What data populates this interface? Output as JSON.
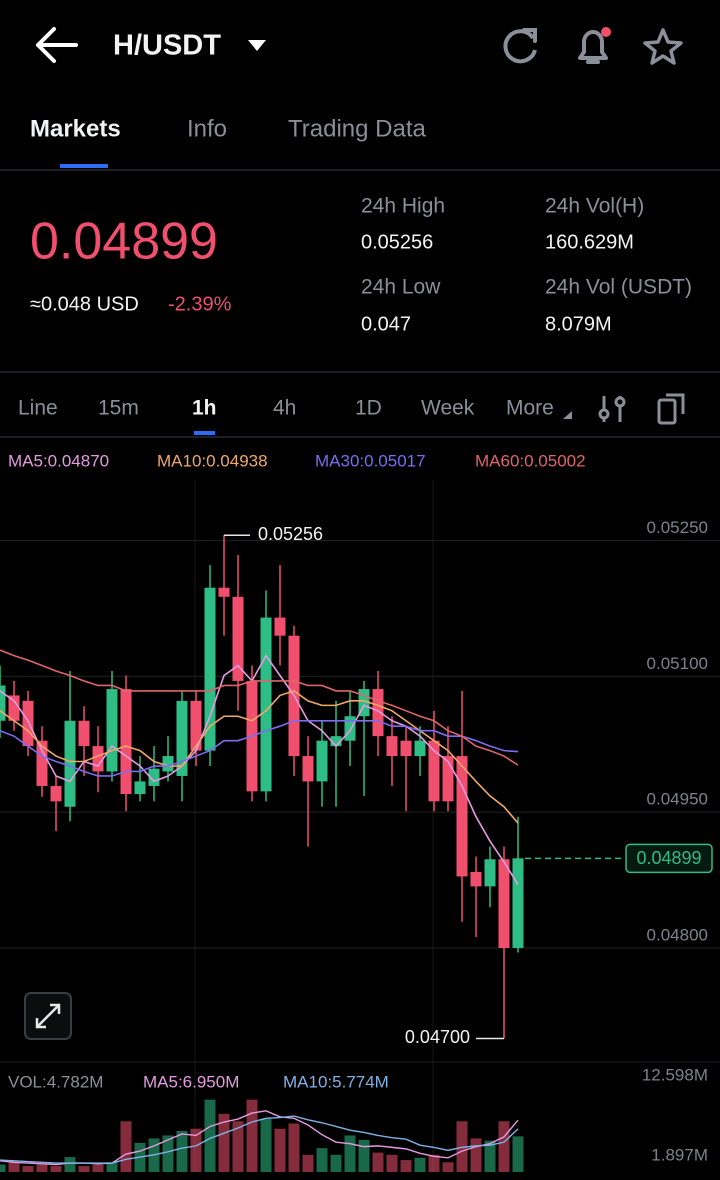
{
  "header": {
    "title": "H/USDT"
  },
  "tabs": [
    "Markets",
    "Info",
    "Trading Data"
  ],
  "ticker": {
    "price": "0.04899",
    "usd": "≈0.048 USD",
    "change": "-2.39%",
    "stats": [
      {
        "label": "24h High",
        "value": "0.05256"
      },
      {
        "label": "24h Vol(H)",
        "value": "160.629M"
      },
      {
        "label": "24h Low",
        "value": "0.047"
      },
      {
        "label": "24h Vol (USDT)",
        "value": "8.079M"
      }
    ]
  },
  "intervals": [
    "Line",
    "15m",
    "1h",
    "4h",
    "1D",
    "Week",
    "More"
  ],
  "chart_data": [
    {
      "type": "candlestick",
      "up_color": "#2ebd85",
      "down_color": "#f0506e",
      "open": [
        0.05051,
        0.05079,
        0.05073,
        0.05029,
        0.04979,
        0.04956,
        0.05051,
        0.05023,
        0.04995,
        0.05086,
        0.0497,
        0.04979,
        0.04995,
        0.0499,
        0.05073,
        0.05018,
        0.05198,
        0.05188,
        0.05095,
        0.04973,
        0.05165,
        0.05145,
        0.05012,
        0.04984,
        0.05023,
        0.05029,
        0.05056,
        0.05086,
        0.05034,
        0.05029,
        0.05012,
        0.05029,
        0.05012,
        0.05012,
        0.04884,
        0.04868,
        0.04898,
        0.048
      ],
      "high": [
        0.05112,
        0.05095,
        0.05084,
        0.05045,
        0.0499,
        0.05106,
        0.05067,
        0.05045,
        0.05106,
        0.05101,
        0.05012,
        0.05023,
        0.05034,
        0.05084,
        0.05084,
        0.05223,
        0.05256,
        0.05234,
        0.05112,
        0.05195,
        0.05223,
        0.05156,
        0.05034,
        0.05051,
        0.05073,
        0.05084,
        0.05095,
        0.05106,
        0.05056,
        0.05045,
        0.05045,
        0.05062,
        0.05045,
        0.05084,
        0.04901,
        0.04912,
        0.04912,
        0.04945
      ],
      "low": [
        0.05032,
        0.0504,
        0.05012,
        0.04967,
        0.04929,
        0.0494,
        0.0499,
        0.04972,
        0.04984,
        0.04951,
        0.04962,
        0.04962,
        0.04984,
        0.04962,
        0.05001,
        0.05001,
        0.05145,
        0.05062,
        0.04962,
        0.04962,
        0.05112,
        0.0499,
        0.04912,
        0.04956,
        0.04956,
        0.05001,
        0.04968,
        0.05012,
        0.04979,
        0.04951,
        0.0499,
        0.04951,
        0.04951,
        0.04829,
        0.04812,
        0.04845,
        0.047,
        0.04795
      ],
      "close": [
        0.0509,
        0.05051,
        0.05023,
        0.04979,
        0.04962,
        0.05051,
        0.05023,
        0.04995,
        0.05086,
        0.0497,
        0.04984,
        0.04998,
        0.05012,
        0.05073,
        0.05018,
        0.05198,
        0.05188,
        0.05095,
        0.04973,
        0.05165,
        0.05145,
        0.05012,
        0.04984,
        0.05029,
        0.05034,
        0.05056,
        0.05086,
        0.05034,
        0.05012,
        0.05012,
        0.05029,
        0.04962,
        0.04962,
        0.04879,
        0.04868,
        0.04898,
        0.048,
        0.04899
      ],
      "series": [
        {
          "name": "MA5:0.04870",
          "color": "#e59be0",
          "values": [
            0.05084,
            0.05073,
            0.05051,
            0.05018,
            0.0499,
            0.04984,
            0.05006,
            0.05001,
            0.05023,
            0.05012,
            0.05001,
            0.04984,
            0.0499,
            0.05001,
            0.05018,
            0.05056,
            0.05101,
            0.05112,
            0.05095,
            0.05123,
            0.05101,
            0.05079,
            0.05051,
            0.0504,
            0.05023,
            0.0504,
            0.05068,
            0.05062,
            0.05051,
            0.05045,
            0.05034,
            0.05018,
            0.05006,
            0.04979,
            0.04945,
            0.04918,
            0.04895,
            0.0487
          ]
        },
        {
          "name": "MA10:0.04938",
          "color": "#f0a868",
          "values": [
            0.05062,
            0.05051,
            0.0504,
            0.05023,
            0.05012,
            0.05006,
            0.05006,
            0.05012,
            0.05018,
            0.05023,
            0.05018,
            0.05006,
            0.05001,
            0.05001,
            0.05023,
            0.05045,
            0.05056,
            0.05056,
            0.05051,
            0.05062,
            0.05079,
            0.05084,
            0.05073,
            0.05068,
            0.05068,
            0.05073,
            0.05073,
            0.05068,
            0.05062,
            0.05051,
            0.0504,
            0.05029,
            0.05018,
            0.05001,
            0.04984,
            0.04968,
            0.04956,
            0.04938
          ]
        },
        {
          "name": "MA30:0.05017",
          "color": "#7b6cf0",
          "values": [
            0.0504,
            0.05034,
            0.05023,
            0.05012,
            0.05006,
            0.05001,
            0.04995,
            0.0499,
            0.0499,
            0.04995,
            0.04995,
            0.05001,
            0.05001,
            0.05006,
            0.05012,
            0.05018,
            0.05029,
            0.05029,
            0.05034,
            0.0504,
            0.05045,
            0.05051,
            0.05051,
            0.05051,
            0.05051,
            0.05051,
            0.05051,
            0.05051,
            0.05045,
            0.05045,
            0.0504,
            0.0504,
            0.05034,
            0.05034,
            0.05029,
            0.05023,
            0.05018,
            0.05017
          ]
        },
        {
          "name": "MA60:0.05002",
          "color": "#e0656a",
          "values": [
            0.05129,
            0.05123,
            0.05118,
            0.05112,
            0.05106,
            0.05101,
            0.05095,
            0.0509,
            0.0509,
            0.05084,
            0.05084,
            0.05084,
            0.05084,
            0.05084,
            0.05084,
            0.05084,
            0.0509,
            0.0509,
            0.05095,
            0.05095,
            0.05095,
            0.05095,
            0.0509,
            0.0509,
            0.05084,
            0.05084,
            0.05079,
            0.05073,
            0.05068,
            0.05062,
            0.05056,
            0.05051,
            0.0504,
            0.05034,
            0.05023,
            0.05018,
            0.05012,
            0.05002
          ]
        }
      ],
      "ylim": [
        0.04674,
        0.05317
      ],
      "yticks": [
        {
          "value": 0.0525,
          "label": "0.05250"
        },
        {
          "value": 0.051,
          "label": "0.05100"
        },
        {
          "value": 0.0495,
          "label": "0.04950"
        },
        {
          "value": 0.048,
          "label": "0.04800"
        }
      ],
      "last_price": 0.04899,
      "high_label": 0.05256,
      "low_label": {
        "value": 0.047,
        "label": "0.04700"
      },
      "grid": true
    },
    {
      "type": "bar",
      "series": [
        {
          "name": "VOL:4.782M",
          "color": "#8a8f99",
          "mark": "bar",
          "values": [
            1.0,
            1.3,
            0.8,
            1.0,
            0.8,
            2.0,
            0.8,
            1.0,
            1.3,
            6.8,
            3.9,
            4.5,
            4.9,
            5.5,
            5.8,
            9.7,
            7.8,
            6.8,
            9.7,
            7.1,
            5.8,
            6.5,
            2.3,
            3.2,
            2.3,
            4.9,
            4.3,
            2.6,
            2.3,
            1.6,
            1.9,
            2.3,
            1.3,
            6.8,
            4.5,
            4.2,
            6.8,
            4.782
          ]
        },
        {
          "name": "MA5:6.950M",
          "color": "#e59be0",
          "mark": "line",
          "values": [
            1.5,
            1.3,
            1.2,
            1.1,
            1.0,
            1.2,
            1.2,
            1.1,
            1.2,
            2.4,
            2.8,
            3.5,
            4.3,
            5.1,
            4.9,
            6.1,
            6.7,
            7.1,
            7.9,
            8.2,
            7.4,
            7.2,
            6.3,
            5.0,
            4.0,
            3.8,
            3.4,
            3.5,
            3.3,
            3.1,
            2.5,
            2.1,
            1.9,
            2.8,
            3.4,
            3.8,
            4.7,
            6.95
          ]
        },
        {
          "name": "MA10:5.774M",
          "color": "#7fb3e6",
          "mark": "line",
          "values": [
            1.6,
            1.5,
            1.4,
            1.3,
            1.2,
            1.2,
            1.2,
            1.2,
            1.2,
            1.7,
            2.0,
            2.3,
            2.7,
            3.2,
            3.5,
            4.5,
            5.2,
            5.9,
            6.7,
            7.2,
            7.3,
            7.5,
            7.0,
            6.6,
            6.1,
            5.6,
            5.3,
            4.9,
            4.6,
            4.4,
            3.6,
            3.3,
            2.9,
            3.3,
            3.5,
            3.6,
            4.0,
            5.774
          ]
        }
      ],
      "ylim": [
        0,
        12.598
      ],
      "yticks": [
        {
          "value": 12.598,
          "label": "12.598M"
        },
        {
          "value": 1.897,
          "label": "1.897M"
        }
      ]
    }
  ]
}
